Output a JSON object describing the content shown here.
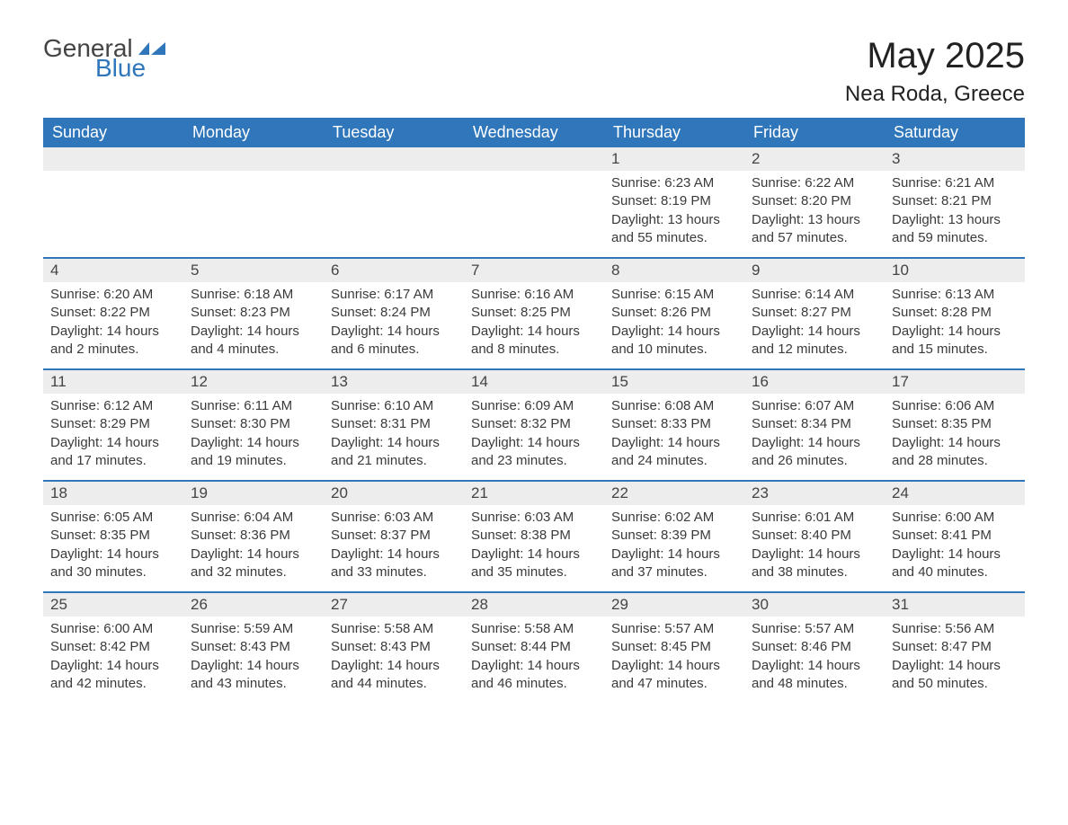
{
  "logo": {
    "text_general": "General",
    "text_blue": "Blue",
    "icon_color": "#2f76bb"
  },
  "title": "May 2025",
  "location": "Nea Roda, Greece",
  "colors": {
    "header_bg": "#2f76bb",
    "header_text": "#ffffff",
    "daynum_bg": "#ededed",
    "daynum_text": "#444444",
    "body_text": "#3a3a3a",
    "divider": "#2f76bb",
    "page_bg": "#ffffff"
  },
  "weekdays": [
    "Sunday",
    "Monday",
    "Tuesday",
    "Wednesday",
    "Thursday",
    "Friday",
    "Saturday"
  ],
  "weeks": [
    [
      {
        "day": "",
        "sunrise": "",
        "sunset": "",
        "daylight": ""
      },
      {
        "day": "",
        "sunrise": "",
        "sunset": "",
        "daylight": ""
      },
      {
        "day": "",
        "sunrise": "",
        "sunset": "",
        "daylight": ""
      },
      {
        "day": "",
        "sunrise": "",
        "sunset": "",
        "daylight": ""
      },
      {
        "day": "1",
        "sunrise": "Sunrise: 6:23 AM",
        "sunset": "Sunset: 8:19 PM",
        "daylight": "Daylight: 13 hours and 55 minutes."
      },
      {
        "day": "2",
        "sunrise": "Sunrise: 6:22 AM",
        "sunset": "Sunset: 8:20 PM",
        "daylight": "Daylight: 13 hours and 57 minutes."
      },
      {
        "day": "3",
        "sunrise": "Sunrise: 6:21 AM",
        "sunset": "Sunset: 8:21 PM",
        "daylight": "Daylight: 13 hours and 59 minutes."
      }
    ],
    [
      {
        "day": "4",
        "sunrise": "Sunrise: 6:20 AM",
        "sunset": "Sunset: 8:22 PM",
        "daylight": "Daylight: 14 hours and 2 minutes."
      },
      {
        "day": "5",
        "sunrise": "Sunrise: 6:18 AM",
        "sunset": "Sunset: 8:23 PM",
        "daylight": "Daylight: 14 hours and 4 minutes."
      },
      {
        "day": "6",
        "sunrise": "Sunrise: 6:17 AM",
        "sunset": "Sunset: 8:24 PM",
        "daylight": "Daylight: 14 hours and 6 minutes."
      },
      {
        "day": "7",
        "sunrise": "Sunrise: 6:16 AM",
        "sunset": "Sunset: 8:25 PM",
        "daylight": "Daylight: 14 hours and 8 minutes."
      },
      {
        "day": "8",
        "sunrise": "Sunrise: 6:15 AM",
        "sunset": "Sunset: 8:26 PM",
        "daylight": "Daylight: 14 hours and 10 minutes."
      },
      {
        "day": "9",
        "sunrise": "Sunrise: 6:14 AM",
        "sunset": "Sunset: 8:27 PM",
        "daylight": "Daylight: 14 hours and 12 minutes."
      },
      {
        "day": "10",
        "sunrise": "Sunrise: 6:13 AM",
        "sunset": "Sunset: 8:28 PM",
        "daylight": "Daylight: 14 hours and 15 minutes."
      }
    ],
    [
      {
        "day": "11",
        "sunrise": "Sunrise: 6:12 AM",
        "sunset": "Sunset: 8:29 PM",
        "daylight": "Daylight: 14 hours and 17 minutes."
      },
      {
        "day": "12",
        "sunrise": "Sunrise: 6:11 AM",
        "sunset": "Sunset: 8:30 PM",
        "daylight": "Daylight: 14 hours and 19 minutes."
      },
      {
        "day": "13",
        "sunrise": "Sunrise: 6:10 AM",
        "sunset": "Sunset: 8:31 PM",
        "daylight": "Daylight: 14 hours and 21 minutes."
      },
      {
        "day": "14",
        "sunrise": "Sunrise: 6:09 AM",
        "sunset": "Sunset: 8:32 PM",
        "daylight": "Daylight: 14 hours and 23 minutes."
      },
      {
        "day": "15",
        "sunrise": "Sunrise: 6:08 AM",
        "sunset": "Sunset: 8:33 PM",
        "daylight": "Daylight: 14 hours and 24 minutes."
      },
      {
        "day": "16",
        "sunrise": "Sunrise: 6:07 AM",
        "sunset": "Sunset: 8:34 PM",
        "daylight": "Daylight: 14 hours and 26 minutes."
      },
      {
        "day": "17",
        "sunrise": "Sunrise: 6:06 AM",
        "sunset": "Sunset: 8:35 PM",
        "daylight": "Daylight: 14 hours and 28 minutes."
      }
    ],
    [
      {
        "day": "18",
        "sunrise": "Sunrise: 6:05 AM",
        "sunset": "Sunset: 8:35 PM",
        "daylight": "Daylight: 14 hours and 30 minutes."
      },
      {
        "day": "19",
        "sunrise": "Sunrise: 6:04 AM",
        "sunset": "Sunset: 8:36 PM",
        "daylight": "Daylight: 14 hours and 32 minutes."
      },
      {
        "day": "20",
        "sunrise": "Sunrise: 6:03 AM",
        "sunset": "Sunset: 8:37 PM",
        "daylight": "Daylight: 14 hours and 33 minutes."
      },
      {
        "day": "21",
        "sunrise": "Sunrise: 6:03 AM",
        "sunset": "Sunset: 8:38 PM",
        "daylight": "Daylight: 14 hours and 35 minutes."
      },
      {
        "day": "22",
        "sunrise": "Sunrise: 6:02 AM",
        "sunset": "Sunset: 8:39 PM",
        "daylight": "Daylight: 14 hours and 37 minutes."
      },
      {
        "day": "23",
        "sunrise": "Sunrise: 6:01 AM",
        "sunset": "Sunset: 8:40 PM",
        "daylight": "Daylight: 14 hours and 38 minutes."
      },
      {
        "day": "24",
        "sunrise": "Sunrise: 6:00 AM",
        "sunset": "Sunset: 8:41 PM",
        "daylight": "Daylight: 14 hours and 40 minutes."
      }
    ],
    [
      {
        "day": "25",
        "sunrise": "Sunrise: 6:00 AM",
        "sunset": "Sunset: 8:42 PM",
        "daylight": "Daylight: 14 hours and 42 minutes."
      },
      {
        "day": "26",
        "sunrise": "Sunrise: 5:59 AM",
        "sunset": "Sunset: 8:43 PM",
        "daylight": "Daylight: 14 hours and 43 minutes."
      },
      {
        "day": "27",
        "sunrise": "Sunrise: 5:58 AM",
        "sunset": "Sunset: 8:43 PM",
        "daylight": "Daylight: 14 hours and 44 minutes."
      },
      {
        "day": "28",
        "sunrise": "Sunrise: 5:58 AM",
        "sunset": "Sunset: 8:44 PM",
        "daylight": "Daylight: 14 hours and 46 minutes."
      },
      {
        "day": "29",
        "sunrise": "Sunrise: 5:57 AM",
        "sunset": "Sunset: 8:45 PM",
        "daylight": "Daylight: 14 hours and 47 minutes."
      },
      {
        "day": "30",
        "sunrise": "Sunrise: 5:57 AM",
        "sunset": "Sunset: 8:46 PM",
        "daylight": "Daylight: 14 hours and 48 minutes."
      },
      {
        "day": "31",
        "sunrise": "Sunrise: 5:56 AM",
        "sunset": "Sunset: 8:47 PM",
        "daylight": "Daylight: 14 hours and 50 minutes."
      }
    ]
  ]
}
